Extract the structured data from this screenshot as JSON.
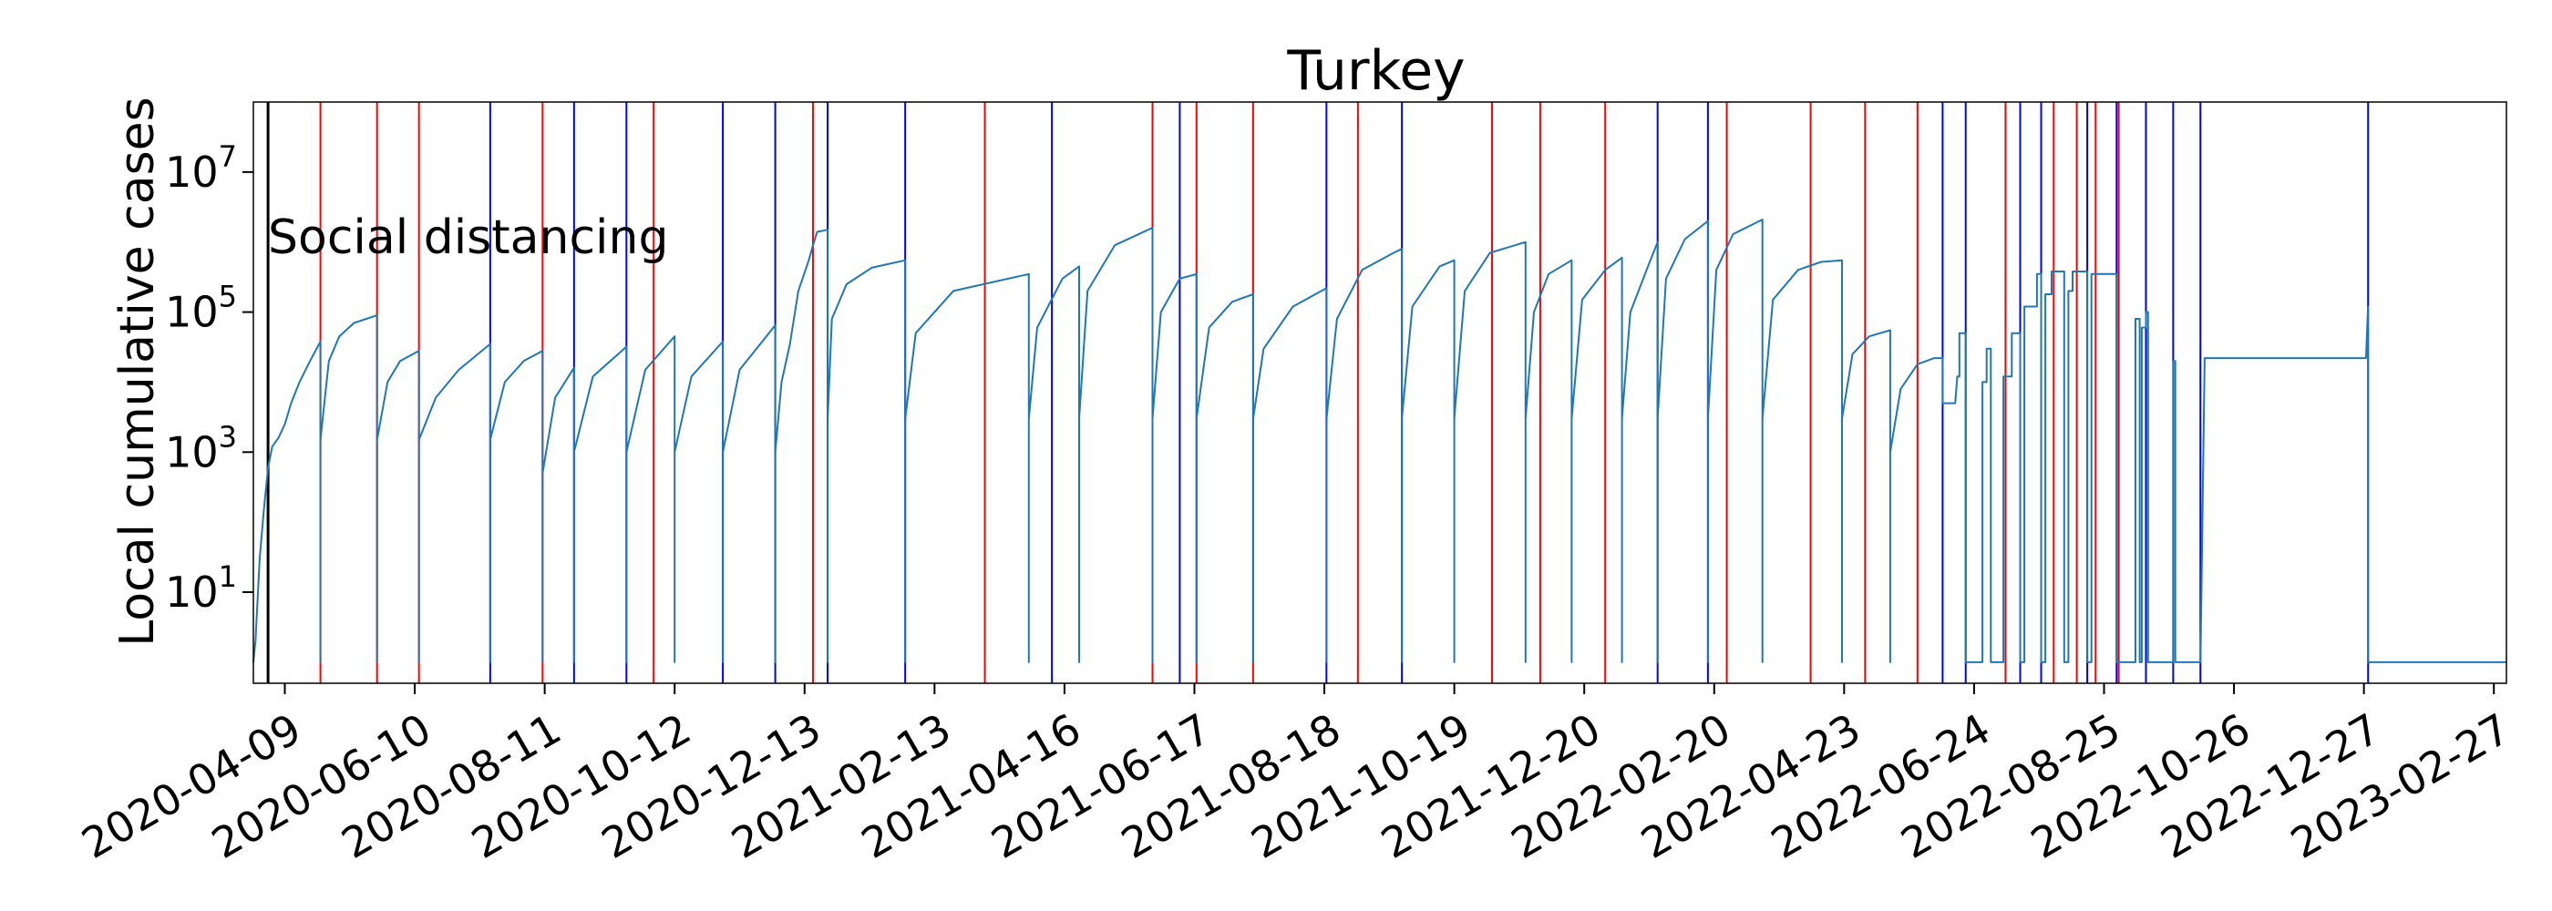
{
  "chart_data": {
    "type": "line",
    "title": "Turkey",
    "xlabel": "",
    "ylabel": "Local cumulative cases",
    "yscale": "log",
    "ylim": [
      0.5,
      100000000
    ],
    "xlim": [
      "2020-03-25",
      "2023-03-05"
    ],
    "yticks": [
      {
        "value": 10,
        "label": "10^1"
      },
      {
        "value": 1000,
        "label": "10^3"
      },
      {
        "value": 100000,
        "label": "10^5"
      },
      {
        "value": 10000000,
        "label": "10^7"
      }
    ],
    "xticks": [
      "2020-04-09",
      "2020-06-10",
      "2020-08-11",
      "2020-10-12",
      "2020-12-13",
      "2021-02-13",
      "2021-04-16",
      "2021-06-17",
      "2021-08-18",
      "2021-10-19",
      "2021-12-20",
      "2022-02-20",
      "2022-04-23",
      "2022-06-24",
      "2022-08-25",
      "2022-10-26",
      "2022-12-27",
      "2023-02-27"
    ],
    "grid": false,
    "annotation": {
      "text": "Social distancing",
      "date": "2020-04-01"
    },
    "colors": {
      "series": "#1f77b4",
      "red_marker": "#ff0000",
      "blue_marker": "#0000ff",
      "black_marker": "#000000"
    },
    "black_markers": [
      "2020-04-01"
    ],
    "red_markers": [
      "2020-04-26",
      "2020-05-23",
      "2020-06-12",
      "2020-08-10",
      "2020-10-02",
      "2020-12-17",
      "2021-03-09",
      "2021-05-28",
      "2021-06-18",
      "2021-07-15",
      "2021-09-03",
      "2021-11-06",
      "2021-11-29",
      "2021-12-30",
      "2022-02-26",
      "2022-04-07",
      "2022-05-03",
      "2022-05-28",
      "2022-07-09",
      "2022-08-01",
      "2022-08-12",
      "2022-08-21",
      "2022-09-01"
    ],
    "blue_markers": [
      "2020-07-16",
      "2020-08-25",
      "2020-09-19",
      "2020-11-04",
      "2020-11-29",
      "2020-12-24",
      "2021-01-30",
      "2021-04-10",
      "2021-06-10",
      "2021-08-19",
      "2021-09-24",
      "2022-01-24",
      "2022-02-17",
      "2022-06-09",
      "2022-06-20",
      "2022-07-16",
      "2022-07-26",
      "2022-08-17",
      "2022-08-31",
      "2022-09-14",
      "2022-09-27",
      "2022-10-10",
      "2022-12-29"
    ],
    "series": [
      {
        "points": [
          [
            "2020-03-25",
            1
          ],
          [
            "2020-03-26",
            2
          ],
          [
            "2020-03-28",
            30
          ],
          [
            "2020-03-30",
            150
          ],
          [
            "2020-04-01",
            600
          ],
          [
            "2020-04-03",
            1200
          ],
          [
            "2020-04-06",
            1600
          ],
          [
            "2020-04-09",
            2500
          ],
          [
            "2020-04-12",
            5000
          ],
          [
            "2020-04-16",
            10000
          ],
          [
            "2020-04-21",
            20000
          ],
          [
            "2020-04-26",
            38000
          ],
          [
            "2020-04-26",
            1
          ],
          [
            "2020-04-26",
            1500
          ],
          [
            "2020-04-30",
            20000
          ],
          [
            "2020-05-05",
            45000
          ],
          [
            "2020-05-12",
            70000
          ],
          [
            "2020-05-23",
            90000
          ],
          [
            "2020-05-23",
            1
          ],
          [
            "2020-05-23",
            1500
          ],
          [
            "2020-05-28",
            10000
          ],
          [
            "2020-06-03",
            20000
          ],
          [
            "2020-06-12",
            28000
          ],
          [
            "2020-06-12",
            1
          ],
          [
            "2020-06-12",
            1500
          ],
          [
            "2020-06-20",
            6000
          ],
          [
            "2020-07-01",
            15000
          ],
          [
            "2020-07-16",
            35000
          ],
          [
            "2020-07-16",
            1
          ],
          [
            "2020-07-16",
            1500
          ],
          [
            "2020-07-23",
            10000
          ],
          [
            "2020-08-01",
            20000
          ],
          [
            "2020-08-10",
            28000
          ],
          [
            "2020-08-10",
            1
          ],
          [
            "2020-08-10",
            500
          ],
          [
            "2020-08-16",
            6000
          ],
          [
            "2020-08-25",
            16000
          ],
          [
            "2020-08-25",
            1
          ],
          [
            "2020-08-25",
            1000
          ],
          [
            "2020-09-03",
            12000
          ],
          [
            "2020-09-19",
            32000
          ],
          [
            "2020-09-19",
            1
          ],
          [
            "2020-09-19",
            1000
          ],
          [
            "2020-09-28",
            15000
          ],
          [
            "2020-10-12",
            45000
          ],
          [
            "2020-10-12",
            1
          ],
          [
            "2020-10-12",
            1000
          ],
          [
            "2020-10-20",
            12000
          ],
          [
            "2020-11-04",
            38000
          ],
          [
            "2020-11-04",
            1
          ],
          [
            "2020-11-04",
            1000
          ],
          [
            "2020-11-12",
            15000
          ],
          [
            "2020-11-29",
            65000
          ],
          [
            "2020-11-29",
            1
          ],
          [
            "2020-11-29",
            1000
          ],
          [
            "2020-12-02",
            10000
          ],
          [
            "2020-12-06",
            35000
          ],
          [
            "2020-12-10",
            200000
          ],
          [
            "2020-12-15",
            550000
          ],
          [
            "2020-12-17",
            900000
          ],
          [
            "2020-12-19",
            1400000
          ],
          [
            "2020-12-24",
            1500000
          ],
          [
            "2020-12-24",
            1
          ],
          [
            "2020-12-24",
            3000
          ],
          [
            "2020-12-26",
            80000
          ],
          [
            "2021-01-02",
            250000
          ],
          [
            "2021-01-14",
            430000
          ],
          [
            "2021-01-30",
            550000
          ],
          [
            "2021-01-30",
            1
          ],
          [
            "2021-01-30",
            3000
          ],
          [
            "2021-02-04",
            50000
          ],
          [
            "2021-02-22",
            200000
          ],
          [
            "2021-03-30",
            350000
          ],
          [
            "2021-03-30",
            1
          ],
          [
            "2021-03-30",
            3000
          ],
          [
            "2021-04-03",
            60000
          ],
          [
            "2021-04-15",
            300000
          ],
          [
            "2021-04-23",
            450000
          ],
          [
            "2021-04-23",
            1
          ],
          [
            "2021-04-23",
            3000
          ],
          [
            "2021-04-27",
            200000
          ],
          [
            "2021-05-10",
            900000
          ],
          [
            "2021-05-28",
            1600000
          ],
          [
            "2021-05-28",
            1
          ],
          [
            "2021-05-28",
            3000
          ],
          [
            "2021-06-01",
            100000
          ],
          [
            "2021-06-10",
            300000
          ],
          [
            "2021-06-18",
            350000
          ],
          [
            "2021-06-18",
            1
          ],
          [
            "2021-06-18",
            3000
          ],
          [
            "2021-06-24",
            60000
          ],
          [
            "2021-07-05",
            140000
          ],
          [
            "2021-07-15",
            180000
          ],
          [
            "2021-07-15",
            1
          ],
          [
            "2021-07-15",
            3000
          ],
          [
            "2021-07-20",
            30000
          ],
          [
            "2021-08-03",
            120000
          ],
          [
            "2021-08-19",
            220000
          ],
          [
            "2021-08-19",
            1
          ],
          [
            "2021-08-19",
            3000
          ],
          [
            "2021-08-24",
            80000
          ],
          [
            "2021-09-05",
            400000
          ],
          [
            "2021-09-20",
            700000
          ],
          [
            "2021-09-24",
            800000
          ],
          [
            "2021-09-24",
            1
          ],
          [
            "2021-09-24",
            3000
          ],
          [
            "2021-09-29",
            120000
          ],
          [
            "2021-10-12",
            450000
          ],
          [
            "2021-10-19",
            550000
          ],
          [
            "2021-10-19",
            1
          ],
          [
            "2021-10-19",
            3000
          ],
          [
            "2021-10-24",
            200000
          ],
          [
            "2021-11-05",
            700000
          ],
          [
            "2021-11-22",
            1000000
          ],
          [
            "2021-11-22",
            1
          ],
          [
            "2021-11-22",
            3000
          ],
          [
            "2021-11-26",
            100000
          ],
          [
            "2021-12-03",
            350000
          ],
          [
            "2021-12-14",
            550000
          ],
          [
            "2021-12-14",
            1
          ],
          [
            "2021-12-14",
            3000
          ],
          [
            "2021-12-19",
            150000
          ],
          [
            "2021-12-30",
            400000
          ],
          [
            "2022-01-07",
            600000
          ],
          [
            "2022-01-07",
            1
          ],
          [
            "2022-01-07",
            3000
          ],
          [
            "2022-01-11",
            100000
          ],
          [
            "2022-01-20",
            500000
          ],
          [
            "2022-01-24",
            1000000
          ],
          [
            "2022-01-24",
            1
          ],
          [
            "2022-01-24",
            3000
          ],
          [
            "2022-01-28",
            300000
          ],
          [
            "2022-02-06",
            1100000
          ],
          [
            "2022-02-17",
            2000000
          ],
          [
            "2022-02-17",
            1
          ],
          [
            "2022-02-17",
            3000
          ],
          [
            "2022-02-21",
            400000
          ],
          [
            "2022-03-01",
            1300000
          ],
          [
            "2022-03-15",
            2100000
          ],
          [
            "2022-03-15",
            1
          ],
          [
            "2022-03-15",
            3000
          ],
          [
            "2022-03-20",
            150000
          ],
          [
            "2022-04-01",
            400000
          ],
          [
            "2022-04-12",
            520000
          ],
          [
            "2022-04-22",
            550000
          ],
          [
            "2022-04-22",
            1
          ],
          [
            "2022-04-22",
            3000
          ],
          [
            "2022-04-27",
            25000
          ],
          [
            "2022-05-05",
            45000
          ],
          [
            "2022-05-15",
            55000
          ],
          [
            "2022-05-15",
            1
          ],
          [
            "2022-05-15",
            1000
          ],
          [
            "2022-05-20",
            8000
          ],
          [
            "2022-05-28",
            18000
          ],
          [
            "2022-06-05",
            22000
          ],
          [
            "2022-06-09",
            22000
          ],
          [
            "2022-06-09",
            5000
          ],
          [
            "2022-06-15",
            5000
          ],
          [
            "2022-06-16",
            12000
          ],
          [
            "2022-06-17",
            12000
          ],
          [
            "2022-06-17",
            50000
          ],
          [
            "2022-06-20",
            50000
          ],
          [
            "2022-06-20",
            1
          ],
          [
            "2022-06-28",
            1
          ],
          [
            "2022-06-28",
            10000
          ],
          [
            "2022-06-30",
            10000
          ],
          [
            "2022-06-30",
            30000
          ],
          [
            "2022-07-02",
            30000
          ],
          [
            "2022-07-02",
            1
          ],
          [
            "2022-07-08",
            1
          ],
          [
            "2022-07-08",
            12000
          ],
          [
            "2022-07-12",
            12000
          ],
          [
            "2022-07-12",
            50000
          ],
          [
            "2022-07-16",
            50000
          ],
          [
            "2022-07-16",
            1
          ],
          [
            "2022-07-18",
            1
          ],
          [
            "2022-07-18",
            120000
          ],
          [
            "2022-07-24",
            120000
          ],
          [
            "2022-07-24",
            350000
          ],
          [
            "2022-07-26",
            350000
          ],
          [
            "2022-07-26",
            1
          ],
          [
            "2022-07-28",
            1
          ],
          [
            "2022-07-28",
            180000
          ],
          [
            "2022-07-31",
            180000
          ],
          [
            "2022-07-31",
            380000
          ],
          [
            "2022-08-06",
            380000
          ],
          [
            "2022-08-06",
            1
          ],
          [
            "2022-08-08",
            1
          ],
          [
            "2022-08-08",
            200000
          ],
          [
            "2022-08-10",
            200000
          ],
          [
            "2022-08-10",
            380000
          ],
          [
            "2022-08-17",
            380000
          ],
          [
            "2022-08-17",
            1
          ],
          [
            "2022-08-19",
            1
          ],
          [
            "2022-08-19",
            350000
          ],
          [
            "2022-08-31",
            350000
          ],
          [
            "2022-08-31",
            1
          ],
          [
            "2022-09-09",
            1
          ],
          [
            "2022-09-09",
            80000
          ],
          [
            "2022-09-11",
            80000
          ],
          [
            "2022-09-11",
            1
          ],
          [
            "2022-09-12",
            1
          ],
          [
            "2022-09-12",
            60000
          ],
          [
            "2022-09-14",
            60000
          ],
          [
            "2022-09-14",
            100000
          ],
          [
            "2022-09-15",
            100000
          ],
          [
            "2022-09-15",
            1
          ],
          [
            "2022-09-27",
            1
          ],
          [
            "2022-09-27",
            20000
          ],
          [
            "2022-09-28",
            20000
          ],
          [
            "2022-09-28",
            1
          ],
          [
            "2022-10-10",
            1
          ],
          [
            "2022-10-10",
            1
          ],
          [
            "2022-10-12",
            22000
          ],
          [
            "2022-12-28",
            22000
          ],
          [
            "2022-12-29",
            120000
          ],
          [
            "2022-12-29",
            1
          ],
          [
            "2023-03-05",
            1
          ]
        ]
      }
    ]
  }
}
